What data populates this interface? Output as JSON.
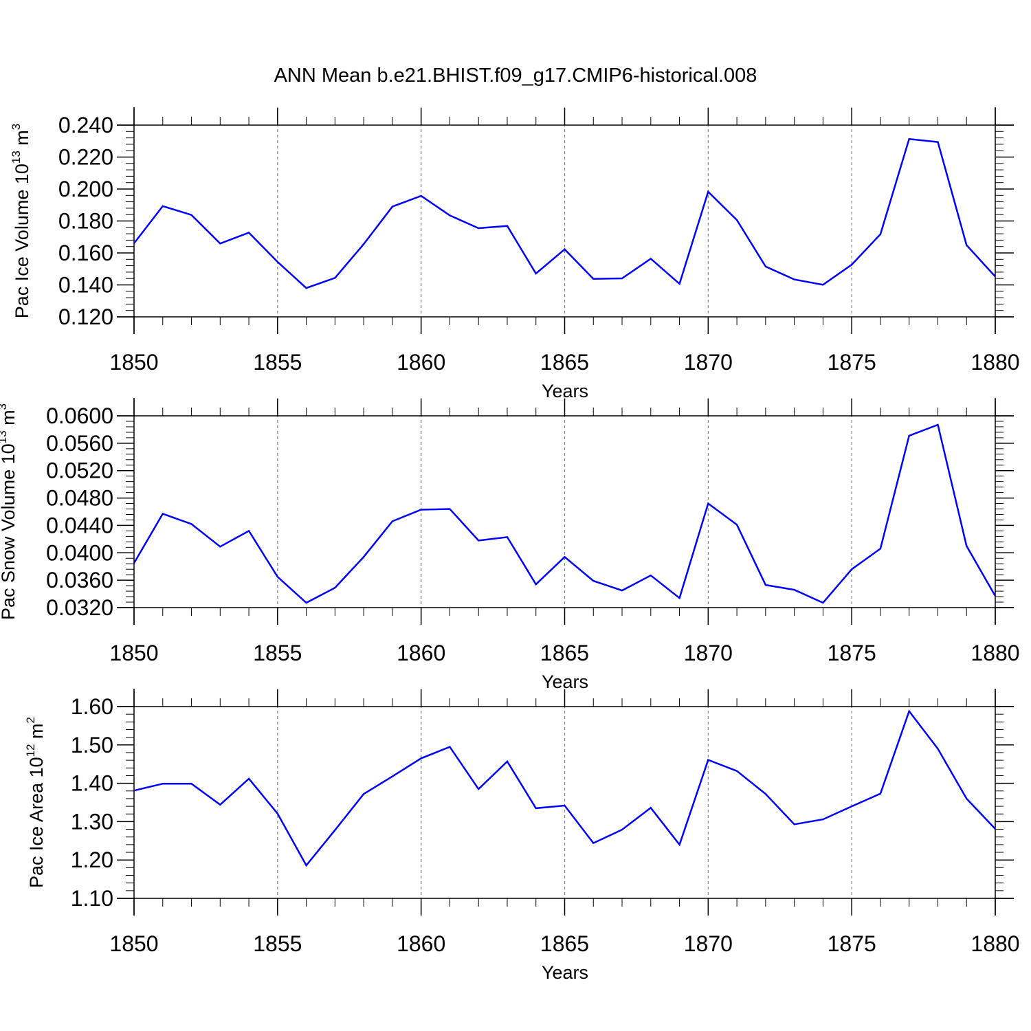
{
  "title": "ANN Mean b.e21.BHIST.f09_g17.CMIP6-historical.008",
  "colors": {
    "series": "#0000ff",
    "axis": "#000000",
    "grid": "#808080"
  },
  "chart_data": [
    {
      "type": "line",
      "title": "ANN Mean b.e21.BHIST.f09_g17.CMIP6-historical.008",
      "xlabel": "Years",
      "ylabel_prefix": "Pac Ice Volume 10",
      "ylabel_exp": "13",
      "ylabel_unit": " m",
      "ylabel_unit_exp": "3",
      "xlim": [
        1850,
        1880
      ],
      "ylim": [
        0.12,
        0.24
      ],
      "grid": "vertical dashed",
      "xticks": [
        1850,
        1855,
        1860,
        1865,
        1870,
        1875,
        1880
      ],
      "xtick_labels": [
        "1850",
        "1855",
        "1860",
        "1865",
        "1870",
        "1875",
        "1880"
      ],
      "yticks": [
        0.12,
        0.14,
        0.16,
        0.18,
        0.2,
        0.22,
        0.24
      ],
      "ytick_labels": [
        "0.120",
        "0.140",
        "0.160",
        "0.180",
        "0.200",
        "0.220",
        "0.240"
      ],
      "y_minor_step": 0.004,
      "x": [
        1850,
        1851,
        1852,
        1853,
        1854,
        1855,
        1856,
        1857,
        1858,
        1859,
        1860,
        1861,
        1862,
        1863,
        1864,
        1865,
        1866,
        1867,
        1868,
        1869,
        1870,
        1871,
        1872,
        1873,
        1874,
        1875,
        1876,
        1877,
        1878,
        1879,
        1880
      ],
      "series": [
        {
          "name": "Pac Ice Volume",
          "values": [
            0.166,
            0.1893,
            0.1838,
            0.1659,
            0.1727,
            0.1544,
            0.138,
            0.1444,
            0.1655,
            0.189,
            0.1957,
            0.1835,
            0.1755,
            0.1769,
            0.1471,
            0.1623,
            0.1438,
            0.1441,
            0.1564,
            0.1407,
            0.1983,
            0.1806,
            0.1515,
            0.1434,
            0.1401,
            0.1527,
            0.1717,
            0.2313,
            0.2294,
            0.1649,
            0.1452
          ]
        }
      ]
    },
    {
      "type": "line",
      "title": "",
      "xlabel": "Years",
      "ylabel_prefix": "Pac Snow Volume 10",
      "ylabel_exp": "13",
      "ylabel_unit": " m",
      "ylabel_unit_exp": "3",
      "xlim": [
        1850,
        1880
      ],
      "ylim": [
        0.032,
        0.06
      ],
      "grid": "vertical dashed",
      "xticks": [
        1850,
        1855,
        1860,
        1865,
        1870,
        1875,
        1880
      ],
      "xtick_labels": [
        "1850",
        "1855",
        "1860",
        "1865",
        "1870",
        "1875",
        "1880"
      ],
      "yticks": [
        0.032,
        0.036,
        0.04,
        0.044,
        0.048,
        0.052,
        0.056,
        0.06
      ],
      "ytick_labels": [
        "0.0320",
        "0.0360",
        "0.0400",
        "0.0440",
        "0.0480",
        "0.0520",
        "0.0560",
        "0.0600"
      ],
      "y_minor_step": 0.0008,
      "x": [
        1850,
        1851,
        1852,
        1853,
        1854,
        1855,
        1856,
        1857,
        1858,
        1859,
        1860,
        1861,
        1862,
        1863,
        1864,
        1865,
        1866,
        1867,
        1868,
        1869,
        1870,
        1871,
        1872,
        1873,
        1874,
        1875,
        1876,
        1877,
        1878,
        1879,
        1880
      ],
      "series": [
        {
          "name": "Pac Snow Volume",
          "values": [
            0.0385,
            0.0457,
            0.0442,
            0.0409,
            0.0432,
            0.0365,
            0.0327,
            0.0349,
            0.0394,
            0.0446,
            0.0463,
            0.0464,
            0.0418,
            0.0423,
            0.0354,
            0.0394,
            0.0359,
            0.0345,
            0.0367,
            0.0334,
            0.0472,
            0.0441,
            0.0353,
            0.0346,
            0.0327,
            0.0376,
            0.0406,
            0.0571,
            0.0587,
            0.041,
            0.0337
          ]
        }
      ]
    },
    {
      "type": "line",
      "title": "",
      "xlabel": "Years",
      "ylabel_prefix": "Pac Ice Area 10",
      "ylabel_exp": "12",
      "ylabel_unit": " m",
      "ylabel_unit_exp": "2",
      "xlim": [
        1850,
        1880
      ],
      "ylim": [
        1.1,
        1.6
      ],
      "grid": "vertical dashed",
      "xticks": [
        1850,
        1855,
        1860,
        1865,
        1870,
        1875,
        1880
      ],
      "xtick_labels": [
        "1850",
        "1855",
        "1860",
        "1865",
        "1870",
        "1875",
        "1880"
      ],
      "yticks": [
        1.1,
        1.2,
        1.3,
        1.4,
        1.5,
        1.6
      ],
      "ytick_labels": [
        "1.10",
        "1.20",
        "1.30",
        "1.40",
        "1.50",
        "1.60"
      ],
      "y_minor_step": 0.02,
      "x": [
        1850,
        1851,
        1852,
        1853,
        1854,
        1855,
        1856,
        1857,
        1858,
        1859,
        1860,
        1861,
        1862,
        1863,
        1864,
        1865,
        1866,
        1867,
        1868,
        1869,
        1870,
        1871,
        1872,
        1873,
        1874,
        1875,
        1876,
        1877,
        1878,
        1879,
        1880
      ],
      "series": [
        {
          "name": "Pac Ice Area",
          "values": [
            1.381,
            1.399,
            1.399,
            1.344,
            1.412,
            1.321,
            1.186,
            1.278,
            1.372,
            1.418,
            1.465,
            1.495,
            1.385,
            1.457,
            1.335,
            1.342,
            1.244,
            1.279,
            1.336,
            1.24,
            1.461,
            1.432,
            1.372,
            1.293,
            1.306,
            1.34,
            1.373,
            1.588,
            1.49,
            1.36,
            1.281
          ]
        }
      ]
    }
  ]
}
